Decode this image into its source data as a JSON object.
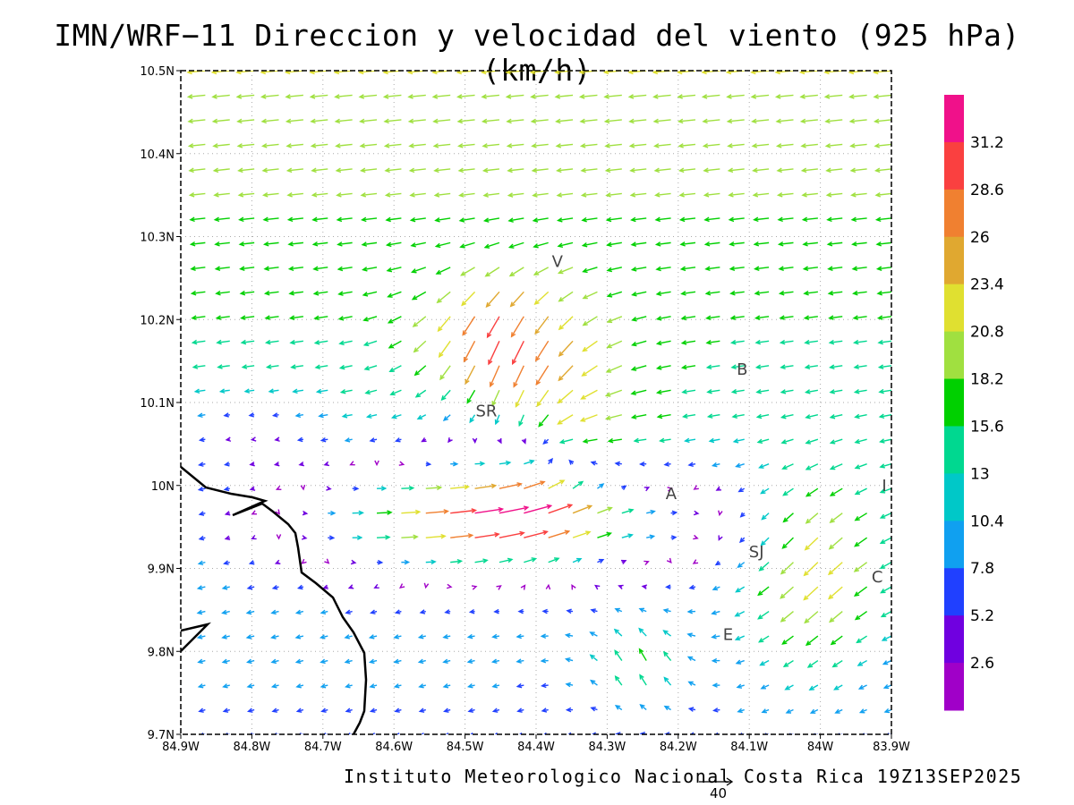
{
  "title": "IMN/WRF−11 Direccion y velocidad del viento (925 hPa)(km/h)",
  "footer": "Instituto Meteorologico Nacional Costa Rica 19Z13SEP2025",
  "reference_vector": {
    "value": "40"
  },
  "map": {
    "lon_range": [
      -84.9,
      -83.9
    ],
    "lat_range": [
      9.7,
      10.5
    ],
    "gridlines": "dotted",
    "x_tick_labels": [
      "84.9W",
      "84.8W",
      "84.7W",
      "84.6W",
      "84.5W",
      "84.4W",
      "84.3W",
      "84.2W",
      "84.1W",
      "84W",
      "83.9W"
    ],
    "y_tick_labels": [
      "9.7N",
      "9.8N",
      "9.9N",
      "10N",
      "10.1N",
      "10.2N",
      "10.3N",
      "10.4N",
      "10.5N"
    ],
    "places": [
      {
        "label": "V",
        "lon": -84.37,
        "lat": 10.27
      },
      {
        "label": "SR",
        "lon": -84.47,
        "lat": 10.09
      },
      {
        "label": "B",
        "lon": -84.11,
        "lat": 10.14
      },
      {
        "label": "A",
        "lon": -84.21,
        "lat": 9.99
      },
      {
        "label": "SJ",
        "lon": -84.09,
        "lat": 9.92
      },
      {
        "label": "C",
        "lon": -83.92,
        "lat": 9.89
      },
      {
        "label": "I",
        "lon": -83.91,
        "lat": 10.0
      },
      {
        "label": "E",
        "lon": -84.13,
        "lat": 9.82
      }
    ]
  },
  "colorbar": {
    "labels": [
      "31.2",
      "28.6",
      "26",
      "23.4",
      "20.8",
      "18.2",
      "15.6",
      "13",
      "10.4",
      "7.8",
      "5.2",
      "2.6"
    ],
    "colors": [
      "#f0118a",
      "#fa4040",
      "#f08030",
      "#e0a830",
      "#e0e030",
      "#a0e040",
      "#00d000",
      "#00d890",
      "#00c8c8",
      "#10a0f0",
      "#2040ff",
      "#7000e0",
      "#a000c8"
    ]
  },
  "wind_field": {
    "units": "km/h",
    "speed_thresholds": [
      2.6,
      5.2,
      7.8,
      10.4,
      13,
      15.6,
      18.2,
      20.8,
      23.4,
      26,
      28.6,
      31.2
    ]
  }
}
